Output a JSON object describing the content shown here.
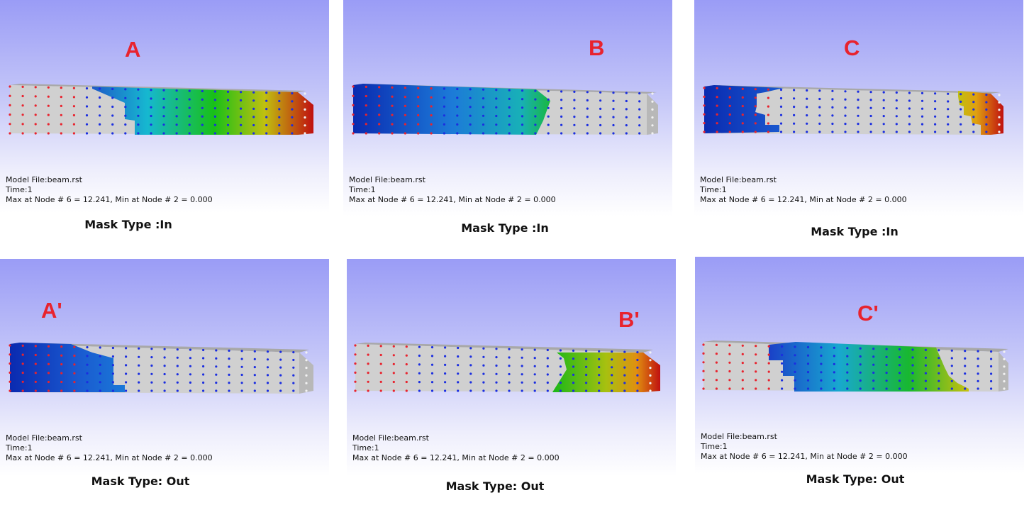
{
  "panels": [
    {
      "letter": "A",
      "model_file": "Model File:beam.rst",
      "time": "Time:1",
      "max_min": "Max at Node # 6 = 12.241, Min at Node # 2 = 0.000",
      "caption": "Mask Type :In"
    },
    {
      "letter": "B",
      "model_file": "Model File:beam.rst",
      "time": "Time:1",
      "max_min": "Max at Node # 6 = 12.241, Min at Node # 2 = 0.000",
      "caption": "Mask Type :In"
    },
    {
      "letter": "C",
      "model_file": "Model File:beam.rst",
      "time": "Time:1",
      "max_min": "Max at Node # 6 = 12.241, Min at Node # 2 = 0.000",
      "caption": "Mask Type :In"
    },
    {
      "letter": "A'",
      "model_file": "Model File:beam.rst",
      "time": "Time:1",
      "max_min": "Max at Node # 6 = 12.241, Min at Node # 2 = 0.000",
      "caption": "Mask Type: Out"
    },
    {
      "letter": "B'",
      "model_file": "Model File:beam.rst",
      "time": "Time:1",
      "max_min": "Max at Node # 6 = 12.241, Min at Node # 2 = 0.000",
      "caption": "Mask Type: Out"
    },
    {
      "letter": "C'",
      "model_file": "Model File:beam.rst",
      "time": "Time:1",
      "max_min": "Max at Node # 6 = 12.241, Min at Node # 2 = 0.000",
      "caption": "Mask Type: Out"
    }
  ],
  "colors": {
    "beam_gray": "#cfcfcf",
    "beam_top_gray": "#a8a8a8",
    "node_red": "#e8232e",
    "node_blue": "#1b2ee0",
    "node_white": "#f2f2f2",
    "label_red": "#e8232e"
  }
}
